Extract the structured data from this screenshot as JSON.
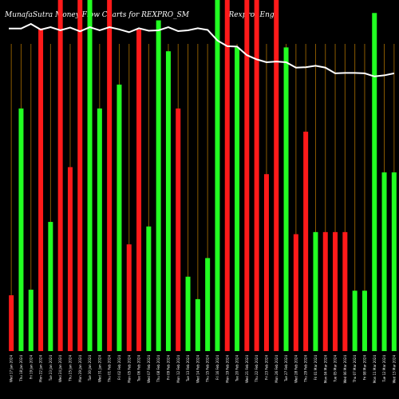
{
  "chart_data": {
    "type": "bar",
    "title": "MunafaSutra Money Flow Charts for REXPRO_SM",
    "title_right": "(Rexpro) Eng",
    "colors": {
      "up": "#22ff22",
      "down": "#ff1a1a",
      "grid": "#8b5a00",
      "line": "#ffffff",
      "background": "#000000"
    },
    "ylim": [
      0,
      100
    ],
    "bars": [
      {
        "date": "Wed 17 Jan 2024",
        "value": 15.9,
        "color": "red"
      },
      {
        "date": "Thu 18 Jan 2024",
        "value": 69.1,
        "color": "green"
      },
      {
        "date": "Fri 19 Jan 2024",
        "value": 17.5,
        "color": "green"
      },
      {
        "date": "Mon 22 Jan 2024",
        "value": 91.9,
        "color": "red"
      },
      {
        "date": "Tue 23 Jan 2024",
        "value": 36.8,
        "color": "green"
      },
      {
        "date": "Wed 24 Jan 2024",
        "value": 100,
        "color": "red"
      },
      {
        "date": "Thu 25 Jan 2024",
        "value": 52.4,
        "color": "red"
      },
      {
        "date": "Mon 29 Jan 2024",
        "value": 100,
        "color": "red"
      },
      {
        "date": "Tue 30 Jan 2024",
        "value": 100,
        "color": "green"
      },
      {
        "date": "Wed 31 Jan 2024",
        "value": 69.1,
        "color": "green"
      },
      {
        "date": "Thu 01 Feb 2024",
        "value": 100,
        "color": "red"
      },
      {
        "date": "Fri 02 Feb 2024",
        "value": 75.9,
        "color": "green"
      },
      {
        "date": "Mon 05 Feb 2024",
        "value": 30.4,
        "color": "red"
      },
      {
        "date": "Tue 06 Feb 2024",
        "value": 91.6,
        "color": "red"
      },
      {
        "date": "Wed 07 Feb 2024",
        "value": 35.5,
        "color": "green"
      },
      {
        "date": "Thu 08 Feb 2024",
        "value": 94.2,
        "color": "green"
      },
      {
        "date": "Fri 09 Feb 2024",
        "value": 85.4,
        "color": "green"
      },
      {
        "date": "Mon 12 Feb 2024",
        "value": 69.1,
        "color": "red"
      },
      {
        "date": "Tue 13 Feb 2024",
        "value": 21.2,
        "color": "green"
      },
      {
        "date": "Wed 14 Feb 2024",
        "value": 14.8,
        "color": "green"
      },
      {
        "date": "Thu 15 Feb 2024",
        "value": 26.5,
        "color": "green"
      },
      {
        "date": "Fri 16 Feb 2024",
        "value": 100,
        "color": "green"
      },
      {
        "date": "Mon 19 Feb 2024",
        "value": 100,
        "color": "red"
      },
      {
        "date": "Tue 20 Feb 2024",
        "value": 86.5,
        "color": "green"
      },
      {
        "date": "Wed 21 Feb 2024",
        "value": 100,
        "color": "red"
      },
      {
        "date": "Thu 22 Feb 2024",
        "value": 100,
        "color": "red"
      },
      {
        "date": "Fri 23 Feb 2024",
        "value": 50.4,
        "color": "red"
      },
      {
        "date": "Mon 26 Feb 2024",
        "value": 100,
        "color": "red"
      },
      {
        "date": "Tue 27 Feb 2024",
        "value": 86.5,
        "color": "green"
      },
      {
        "date": "Wed 28 Feb 2024",
        "value": 33.3,
        "color": "red"
      },
      {
        "date": "Thu 29 Feb 2024",
        "value": 62.5,
        "color": "red"
      },
      {
        "date": "Fri 01 Mar 2024",
        "value": 33.9,
        "color": "green"
      },
      {
        "date": "Mon 04 Mar 2024",
        "value": 33.9,
        "color": "red"
      },
      {
        "date": "Tue 05 Mar 2024",
        "value": 33.9,
        "color": "red"
      },
      {
        "date": "Wed 06 Mar 2024",
        "value": 33.9,
        "color": "red"
      },
      {
        "date": "Thu 07 Mar 2024",
        "value": 17.2,
        "color": "green"
      },
      {
        "date": "Fri 08 Mar 2024",
        "value": 17.2,
        "color": "green"
      },
      {
        "date": "Mon 11 Mar 2024",
        "value": 96.3,
        "color": "green"
      },
      {
        "date": "Tue 12 Mar 2024",
        "value": 50.9,
        "color": "green"
      },
      {
        "date": "Wed 13 Mar 2024",
        "value": 50.9,
        "color": "green"
      }
    ],
    "price_line": [
      96.6,
      96.6,
      100,
      95.8,
      97.6,
      95.3,
      97.3,
      94.5,
      97.6,
      95.3,
      97.6,
      96.0,
      93.9,
      96.8,
      95.0,
      95.3,
      97.6,
      94.7,
      95.3,
      96.8,
      95.6,
      87.8,
      83.6,
      83.3,
      77.0,
      73.9,
      71.8,
      72.3,
      71.8,
      67.8,
      68.1,
      69.2,
      67.8,
      63.6,
      63.9,
      63.9,
      63.6,
      61.3,
      62.1,
      63.6
    ]
  }
}
